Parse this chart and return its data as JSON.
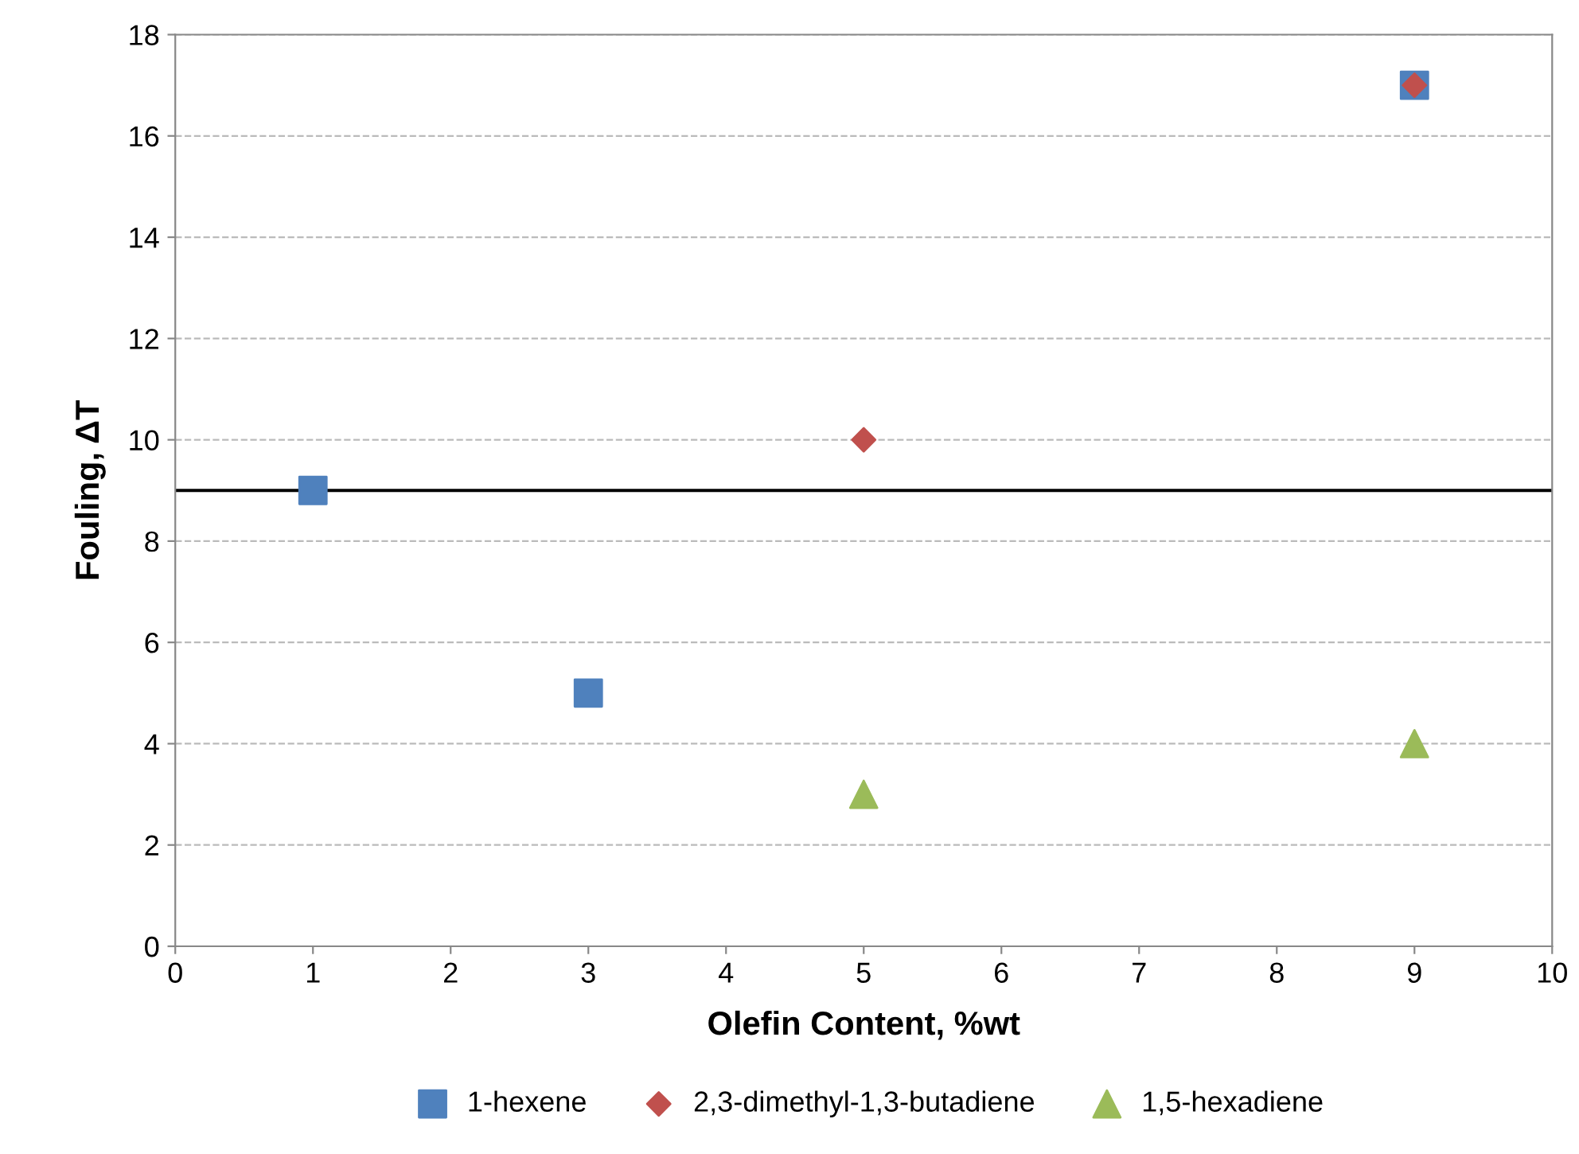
{
  "chart_data": {
    "type": "scatter",
    "xlabel": "Olefin Content, %wt",
    "ylabel": "Fouling, ΔT",
    "series": [
      {
        "name": "1-hexene",
        "color": "#4f81bd",
        "marker": "square",
        "x": [
          1,
          3,
          9
        ],
        "values": [
          9,
          5,
          17
        ]
      },
      {
        "name": "2,3-dimethyl-1,3-butadiene",
        "color": "#c0504d",
        "marker": "diamond",
        "x": [
          5,
          9
        ],
        "values": [
          10,
          17
        ]
      },
      {
        "name": "1,5-hexadiene",
        "color": "#9bbb59",
        "marker": "triangle",
        "x": [
          5,
          9
        ],
        "values": [
          3,
          4
        ]
      }
    ],
    "ref_lines": [
      {
        "axis": "y",
        "value": 9,
        "color": "#000000",
        "line_style": "solid"
      }
    ],
    "xlim": [
      0,
      10
    ],
    "xticks": [
      0,
      1,
      2,
      3,
      4,
      5,
      6,
      7,
      8,
      9,
      10
    ],
    "ylim": [
      0,
      18
    ],
    "yticks": [
      0,
      2,
      4,
      6,
      8,
      10,
      12,
      14,
      16,
      18
    ],
    "grid": "y",
    "legend": "bottom"
  }
}
